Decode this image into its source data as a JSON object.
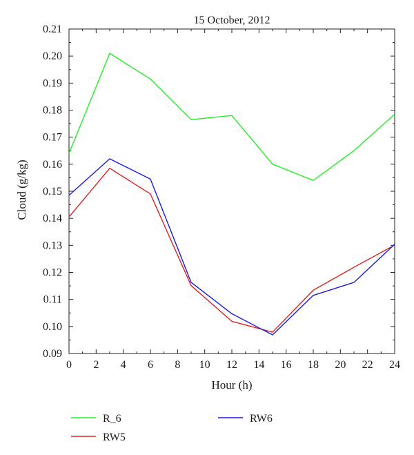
{
  "chart_data": {
    "type": "line",
    "title": "15 October, 2012",
    "xlabel": "Hour (h)",
    "ylabel": "Cloud (g/kg)",
    "xlim": [
      0,
      24
    ],
    "ylim": [
      0.09,
      0.21
    ],
    "xticks": [
      "0",
      "2",
      "4",
      "6",
      "8",
      "10",
      "12",
      "14",
      "16",
      "18",
      "20",
      "22",
      "24"
    ],
    "yticks": [
      "0.09",
      "0.10",
      "0.11",
      "0.12",
      "0.13",
      "0.14",
      "0.15",
      "0.16",
      "0.17",
      "0.18",
      "0.19",
      "0.20",
      "0.21"
    ],
    "grid": false,
    "legend_placement": "bottom",
    "x": [
      0,
      3,
      6,
      9,
      12,
      15,
      18,
      21,
      24
    ],
    "series": [
      {
        "name": "R_6",
        "color": "#22ee22",
        "values": [
          0.164,
          0.201,
          0.1915,
          0.1765,
          0.178,
          0.16,
          0.154,
          0.165,
          0.1785
        ]
      },
      {
        "name": "RW5",
        "color": "#e02020",
        "values": [
          0.1405,
          0.1585,
          0.149,
          0.1151,
          0.1019,
          0.0979,
          0.1134,
          0.1219,
          0.1301
        ]
      },
      {
        "name": "RW6",
        "color": "#1a1add",
        "values": [
          0.1485,
          0.162,
          0.1545,
          0.1163,
          0.1047,
          0.0969,
          0.1115,
          0.1163,
          0.1304
        ]
      }
    ]
  }
}
